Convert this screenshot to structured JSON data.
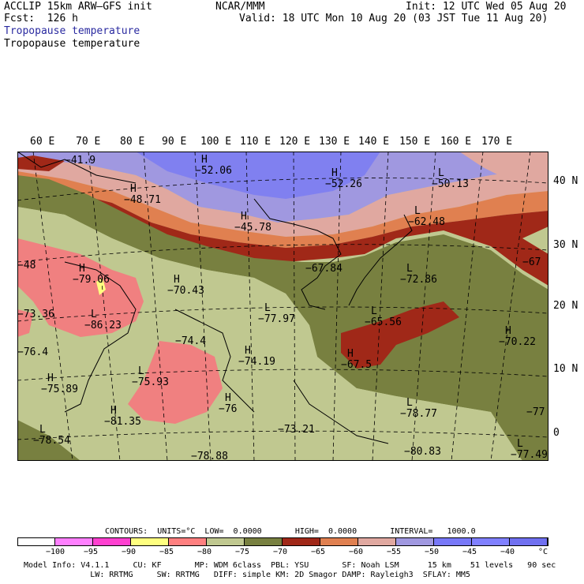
{
  "header": {
    "model": "ACCLIP 15km ARW–GFS init",
    "org": "NCAR/MMM",
    "init": "Init: 12 UTC Wed 05 Aug 20",
    "fcst": "Fcst:  126 h",
    "valid": "Valid: 18 UTC Mon 10 Aug 20 (03 JST Tue 11 Aug 20)",
    "field_blue": "Tropopause temperature",
    "field_black": "Tropopause temperature"
  },
  "map": {
    "lon_labels": [
      "60 E",
      "70 E",
      "80 E",
      "90 E",
      "100 E",
      "110 E",
      "120 E",
      "130 E",
      "140 E",
      "150 E",
      "160 E",
      "170 E"
    ],
    "lat_labels": [
      "40 N",
      "30 N",
      "20 N",
      "10 N",
      "0"
    ],
    "values": [
      {
        "h": "",
        "v": "−41.9"
      },
      {
        "h": "H",
        "v": "−52.06"
      },
      {
        "h": "H",
        "v": "−52.26"
      },
      {
        "h": "L",
        "v": "−50.13"
      },
      {
        "h": "H",
        "v": "−48.71"
      },
      {
        "h": "H",
        "v": "−45.78"
      },
      {
        "h": "L",
        "v": "−62.48"
      },
      {
        "h": "",
        "v": "−48"
      },
      {
        "h": "H",
        "v": "−79.06"
      },
      {
        "h": "H",
        "v": "−70.43"
      },
      {
        "h": "",
        "v": "−67.84"
      },
      {
        "h": "L",
        "v": "−72.86"
      },
      {
        "h": "",
        "v": "−67"
      },
      {
        "h": "L",
        "v": "−86.23"
      },
      {
        "h": "L",
        "v": "−77.97"
      },
      {
        "h": "L",
        "v": "−65.56"
      },
      {
        "h": "",
        "v": "−76.4"
      },
      {
        "h": "H",
        "v": "−70.22"
      },
      {
        "h": "",
        "v": "−74.4"
      },
      {
        "h": "H",
        "v": "−74.19"
      },
      {
        "h": "H",
        "v": "−67.5"
      },
      {
        "h": "H",
        "v": "−75.89"
      },
      {
        "h": "L",
        "v": "−75.93"
      },
      {
        "h": "H",
        "v": "−76"
      },
      {
        "h": "L",
        "v": "−78.77"
      },
      {
        "h": "",
        "v": "−77"
      },
      {
        "h": "H",
        "v": "−81.35"
      },
      {
        "h": "",
        "v": "−73.21"
      },
      {
        "h": "L",
        "v": "−78.54"
      },
      {
        "h": "",
        "v": "−78.88"
      },
      {
        "h": "",
        "v": "−80.83"
      },
      {
        "h": "L",
        "v": "−77.49"
      },
      {
        "h": "",
        "v": "−73.36"
      }
    ]
  },
  "contours": {
    "text": "CONTOURS:  UNITS=°C  LOW=  0.0000       HIGH=  0.0000       INTERVAL=   1000.0"
  },
  "colorbar": {
    "colors": [
      "#ffffff",
      "#ff80ff",
      "#ff40d0",
      "#ffff80",
      "#ff8080",
      "#c0c890",
      "#788040",
      "#a02818",
      "#e08050",
      "#e0a8a0",
      "#a098e0",
      "#7878f8",
      "#8080ff",
      "#7070f0"
    ],
    "labels": [
      "−100",
      "−95",
      "−90",
      "−85",
      "−80",
      "−75",
      "−70",
      "−65",
      "−60",
      "−55",
      "−50",
      "−45",
      "−40",
      "°C"
    ]
  },
  "footer": {
    "line1": "Model Info: V4.1.1     CU: KF       MP: WDM 6class  PBL: YSU       SF: Noah LSM      15 km    51 levels   90 sec",
    "line2": "              LW: RRTMG     SW: RRTMG   DIFF: simple KM: 2D Smagor DAMP: Rayleigh3  SFLAY: MM5"
  }
}
